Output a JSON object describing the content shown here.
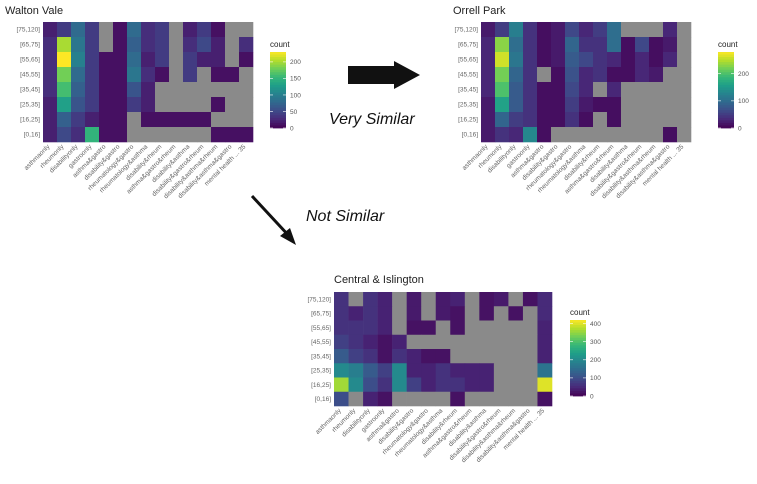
{
  "colors": {
    "missing": "#8a8a8a",
    "viridis": [
      "#440154",
      "#482878",
      "#3e4a89",
      "#31688e",
      "#26828e",
      "#1f9e89",
      "#35b779",
      "#6ece58",
      "#b5de2b",
      "#fde725"
    ]
  },
  "annotations": {
    "similar": "Very Similar",
    "not_similar": "Not Similar"
  },
  "chart_data": [
    {
      "type": "heatmap",
      "title": "Walton Vale",
      "x": [
        "asthmaonly",
        "rheumonly",
        "disabilityonly",
        "gastroonly",
        "asthma&gastro",
        "disability&gastro",
        "rheumatology&gastro",
        "rheumatology&asthma",
        "disability&rheum",
        "asthma&gastro&rheum",
        "disability&asthma",
        "disability&gastro&rheum",
        "disability&asthma&rheum",
        "disability&asthma&gastro",
        "mental health ... 35"
      ],
      "y": [
        "[75,120]",
        "[65,75]",
        "[55,65]",
        "[45,55]",
        "[35,45]",
        "[25,35]",
        "[16,25]",
        "[0,16]"
      ],
      "values": [
        [
          20,
          40,
          80,
          40,
          null,
          10,
          80,
          30,
          40,
          null,
          20,
          40,
          10,
          null,
          null
        ],
        [
          30,
          200,
          90,
          40,
          null,
          10,
          70,
          30,
          40,
          null,
          30,
          50,
          20,
          null,
          30
        ],
        [
          30,
          230,
          100,
          40,
          10,
          10,
          80,
          20,
          40,
          null,
          40,
          20,
          20,
          null,
          10
        ],
        [
          30,
          180,
          80,
          40,
          10,
          10,
          90,
          30,
          10,
          null,
          40,
          null,
          10,
          10,
          null
        ],
        [
          30,
          160,
          70,
          40,
          10,
          10,
          60,
          20,
          null,
          null,
          null,
          null,
          null,
          null,
          null
        ],
        [
          20,
          130,
          60,
          40,
          10,
          10,
          40,
          20,
          null,
          null,
          null,
          null,
          10,
          null,
          null
        ],
        [
          20,
          70,
          40,
          20,
          10,
          10,
          null,
          10,
          10,
          10,
          10,
          10,
          null,
          null,
          null
        ],
        [
          20,
          50,
          30,
          150,
          10,
          10,
          null,
          null,
          null,
          null,
          null,
          null,
          10,
          10,
          10
        ]
      ],
      "legend_title": "count",
      "legend_ticks": [
        0,
        50,
        100,
        150,
        200
      ],
      "vmax": 230
    },
    {
      "type": "heatmap",
      "title": "Orrell Park",
      "x": [
        "asthmaonly",
        "rheumonly",
        "disabilityonly",
        "gastroonly",
        "asthma&gastro",
        "disability&gastro",
        "rheumatology&gastro",
        "rheumatology&asthma",
        "disability&rheum",
        "asthma&gastro&rheum",
        "disability&asthma",
        "disability&gastro&rheum",
        "disability&asthma&rheum",
        "disability&asthma&gastro",
        "mental health ... 35"
      ],
      "y": [
        "[75,120]",
        "[65,75]",
        "[55,65]",
        "[45,55]",
        "[35,45]",
        "[25,35]",
        "[16,25]",
        "[0,16]"
      ],
      "values": [
        [
          20,
          50,
          120,
          40,
          10,
          20,
          60,
          30,
          50,
          100,
          null,
          null,
          null,
          30,
          null
        ],
        [
          30,
          230,
          100,
          40,
          10,
          20,
          90,
          40,
          40,
          100,
          10,
          60,
          10,
          20,
          null
        ],
        [
          30,
          260,
          110,
          40,
          10,
          20,
          80,
          60,
          40,
          30,
          10,
          30,
          10,
          30,
          null
        ],
        [
          30,
          220,
          90,
          40,
          null,
          10,
          70,
          30,
          40,
          10,
          10,
          30,
          20,
          null,
          null
        ],
        [
          30,
          200,
          80,
          40,
          10,
          10,
          60,
          30,
          null,
          30,
          null,
          null,
          null,
          null,
          null
        ],
        [
          20,
          160,
          80,
          40,
          10,
          10,
          50,
          20,
          10,
          10,
          null,
          null,
          null,
          null,
          null
        ],
        [
          20,
          90,
          50,
          40,
          10,
          10,
          40,
          10,
          null,
          10,
          null,
          null,
          null,
          null,
          null
        ],
        [
          20,
          40,
          30,
          130,
          10,
          null,
          null,
          null,
          null,
          null,
          null,
          null,
          null,
          10,
          null
        ]
      ],
      "legend_title": "count",
      "legend_ticks": [
        0,
        100,
        200
      ],
      "vmax": 280
    },
    {
      "type": "heatmap",
      "title": "Central & Islington",
      "x": [
        "asthmaonly",
        "rheumonly",
        "disabilityonly",
        "gastroonly",
        "asthma&gastro",
        "disability&gastro",
        "rheumatology&gastro",
        "rheumatology&asthma",
        "disability&rheum",
        "asthma&gastro&rheum",
        "disability&asthma",
        "disability&gastro&rheum",
        "disability&asthma&rheum",
        "disability&asthma&gastro",
        "mental health ... 35"
      ],
      "y": [
        "[75,120]",
        "[65,75]",
        "[55,65]",
        "[45,55]",
        "[35,45]",
        "[25,35]",
        "[16,25]",
        "[0,16]"
      ],
      "values": [
        [
          60,
          null,
          60,
          40,
          null,
          30,
          null,
          30,
          40,
          null,
          20,
          30,
          null,
          20,
          50
        ],
        [
          60,
          40,
          60,
          40,
          null,
          30,
          null,
          30,
          20,
          null,
          20,
          null,
          20,
          null,
          50
        ],
        [
          60,
          60,
          60,
          40,
          null,
          20,
          20,
          null,
          20,
          null,
          null,
          null,
          null,
          null,
          40
        ],
        [
          80,
          60,
          40,
          20,
          40,
          null,
          null,
          null,
          null,
          null,
          null,
          null,
          null,
          null,
          40
        ],
        [
          120,
          80,
          60,
          20,
          60,
          40,
          20,
          20,
          null,
          null,
          null,
          null,
          null,
          null,
          40
        ],
        [
          200,
          180,
          120,
          80,
          200,
          40,
          40,
          60,
          40,
          40,
          40,
          null,
          null,
          null,
          160
        ],
        [
          360,
          200,
          100,
          60,
          200,
          80,
          40,
          60,
          60,
          40,
          40,
          null,
          null,
          null,
          400
        ],
        [
          100,
          null,
          40,
          20,
          null,
          null,
          null,
          null,
          20,
          null,
          null,
          null,
          null,
          null,
          20
        ]
      ],
      "legend_title": "count",
      "legend_ticks": [
        0,
        100,
        200,
        300,
        400
      ],
      "vmax": 420
    }
  ]
}
